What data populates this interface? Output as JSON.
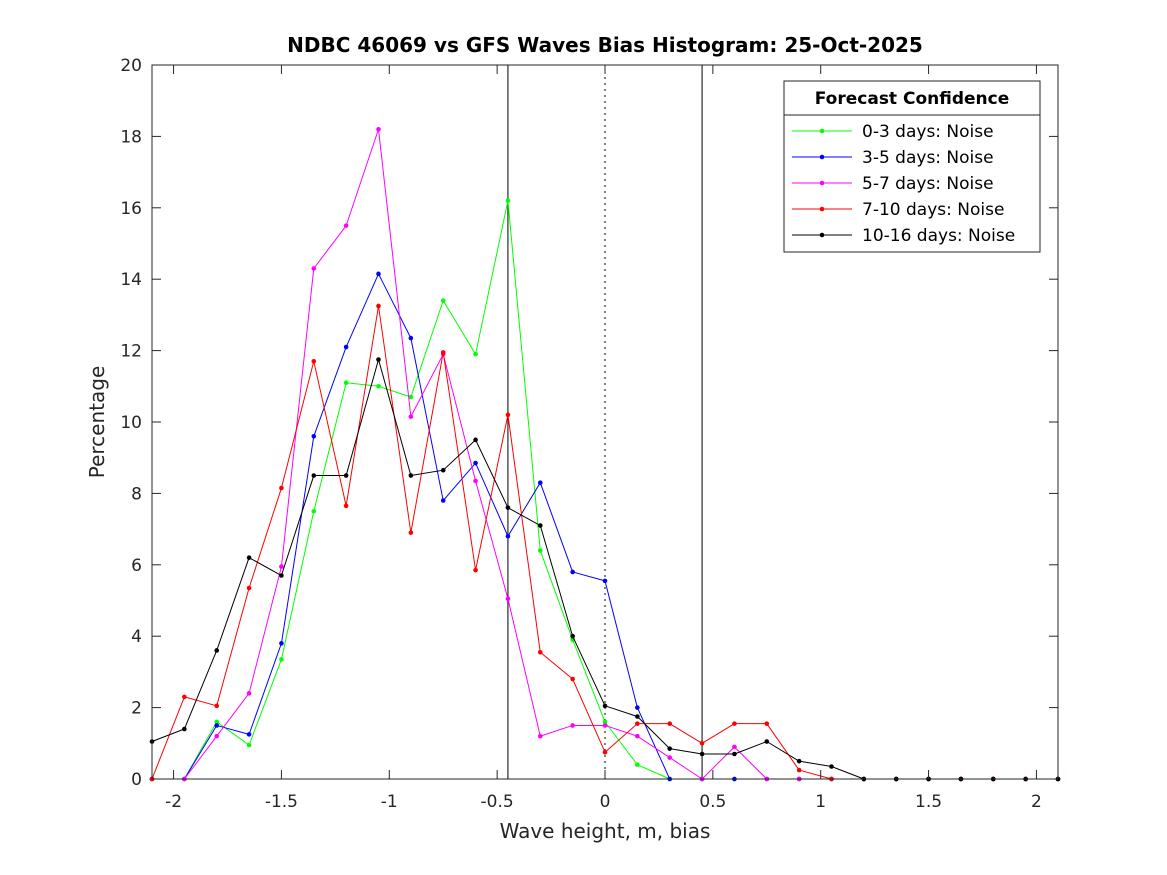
{
  "chart_data": {
    "type": "line",
    "title": "NDBC 46069 vs GFS Waves Bias Histogram: 25-Oct-2025",
    "xlabel": "Wave height, m, bias",
    "ylabel": "Percentage",
    "xlim": [
      -2.1,
      2.1
    ],
    "ylim": [
      0,
      20
    ],
    "xticks": [
      -2,
      -1.5,
      -1,
      -0.5,
      0,
      0.5,
      1,
      1.5,
      2
    ],
    "xtick_labels": [
      "-2",
      "-1.5",
      "-1",
      "-0.5",
      "0",
      "0.5",
      "1",
      "1.5",
      "2"
    ],
    "yticks": [
      0,
      2,
      4,
      6,
      8,
      10,
      12,
      14,
      16,
      18,
      20
    ],
    "ytick_labels": [
      "0",
      "2",
      "4",
      "6",
      "8",
      "10",
      "12",
      "14",
      "16",
      "18",
      "20"
    ],
    "grid": false,
    "legend": {
      "title": "Forecast Confidence",
      "placement": "top-right"
    },
    "vlines": [
      {
        "x": -0.45,
        "style": "solid",
        "color": "#000000"
      },
      {
        "x": 0,
        "style": "dotted",
        "color": "#000000"
      },
      {
        "x": 0.45,
        "style": "solid",
        "color": "#000000"
      }
    ],
    "x": [
      -2.1,
      -1.95,
      -1.8,
      -1.65,
      -1.5,
      -1.35,
      -1.2,
      -1.05,
      -0.9,
      -0.75,
      -0.6,
      -0.45,
      -0.3,
      -0.15,
      0,
      0.15,
      0.3,
      0.45,
      0.6,
      0.75,
      0.9,
      1.05,
      1.2,
      1.35,
      1.5,
      1.65,
      1.8,
      1.95,
      2.1
    ],
    "series": [
      {
        "name": "0-3 days: Noise",
        "color": "#00ff00",
        "values": [
          0,
          0,
          1.6,
          0.95,
          3.35,
          7.5,
          11.1,
          11.0,
          10.7,
          13.4,
          11.9,
          16.2,
          6.4,
          3.9,
          1.6,
          0.4,
          0,
          0,
          0,
          0,
          0,
          0,
          0,
          0,
          0,
          0,
          0,
          0,
          0
        ]
      },
      {
        "name": "3-5 days: Noise",
        "color": "#0000ff",
        "values": [
          0,
          0,
          1.5,
          1.25,
          3.8,
          9.6,
          12.1,
          14.15,
          12.35,
          7.8,
          8.85,
          6.8,
          8.3,
          5.8,
          5.55,
          2.0,
          0,
          0,
          0,
          0,
          0,
          0,
          0,
          0,
          0,
          0,
          0,
          0,
          0
        ]
      },
      {
        "name": "5-7 days: Noise",
        "color": "#ff00ff",
        "values": [
          0,
          0,
          1.2,
          2.4,
          5.95,
          14.3,
          15.5,
          18.2,
          10.15,
          11.9,
          8.35,
          5.05,
          1.2,
          1.5,
          1.5,
          1.2,
          0.6,
          0,
          0.9,
          0,
          0,
          0,
          0,
          0,
          0,
          0,
          0,
          0,
          0
        ]
      },
      {
        "name": "7-10 days: Noise",
        "color": "#ff0000",
        "values": [
          0,
          2.3,
          2.05,
          5.35,
          8.15,
          11.7,
          7.65,
          13.25,
          6.9,
          11.95,
          5.85,
          10.2,
          3.55,
          2.8,
          0.75,
          1.55,
          1.55,
          1.0,
          1.55,
          1.55,
          0.25,
          0,
          0,
          0,
          0,
          0,
          0,
          0,
          0
        ]
      },
      {
        "name": "10-16 days: Noise",
        "color": "#000000",
        "values": [
          1.05,
          1.4,
          3.6,
          6.2,
          5.7,
          8.5,
          8.5,
          11.75,
          8.5,
          8.65,
          9.5,
          7.6,
          7.1,
          4.0,
          2.05,
          1.75,
          0.85,
          0.7,
          0.7,
          1.05,
          0.5,
          0.35,
          0,
          0,
          0,
          0,
          0,
          0,
          0
        ]
      }
    ]
  }
}
